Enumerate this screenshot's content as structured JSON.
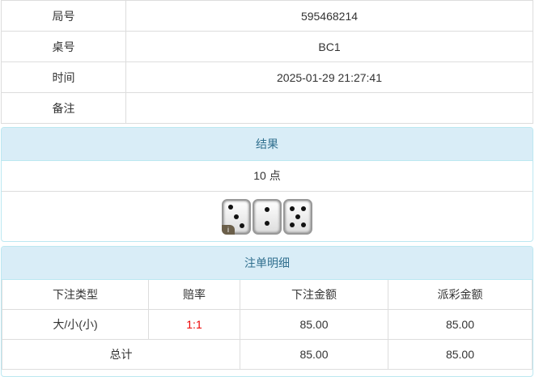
{
  "info": [
    {
      "label": "局号",
      "value": "595468214"
    },
    {
      "label": "桌号",
      "value": "BC1"
    },
    {
      "label": "时间",
      "value": "2025-01-29 21:27:41"
    },
    {
      "label": "备注",
      "value": ""
    }
  ],
  "result": {
    "title": "结果",
    "points": "10 点",
    "dice": [
      3,
      2,
      5
    ],
    "badge": "i"
  },
  "bets": {
    "title": "注单明细",
    "headers": [
      "下注类型",
      "赔率",
      "下注金额",
      "派彩金额"
    ],
    "rows": [
      {
        "type": "大/小(小)",
        "odds": "1:1",
        "amount": "85.00",
        "payout": "85.00"
      }
    ],
    "total": {
      "label": "总计",
      "amount": "85.00",
      "payout": "85.00"
    },
    "odds_color": "#ee0000"
  }
}
